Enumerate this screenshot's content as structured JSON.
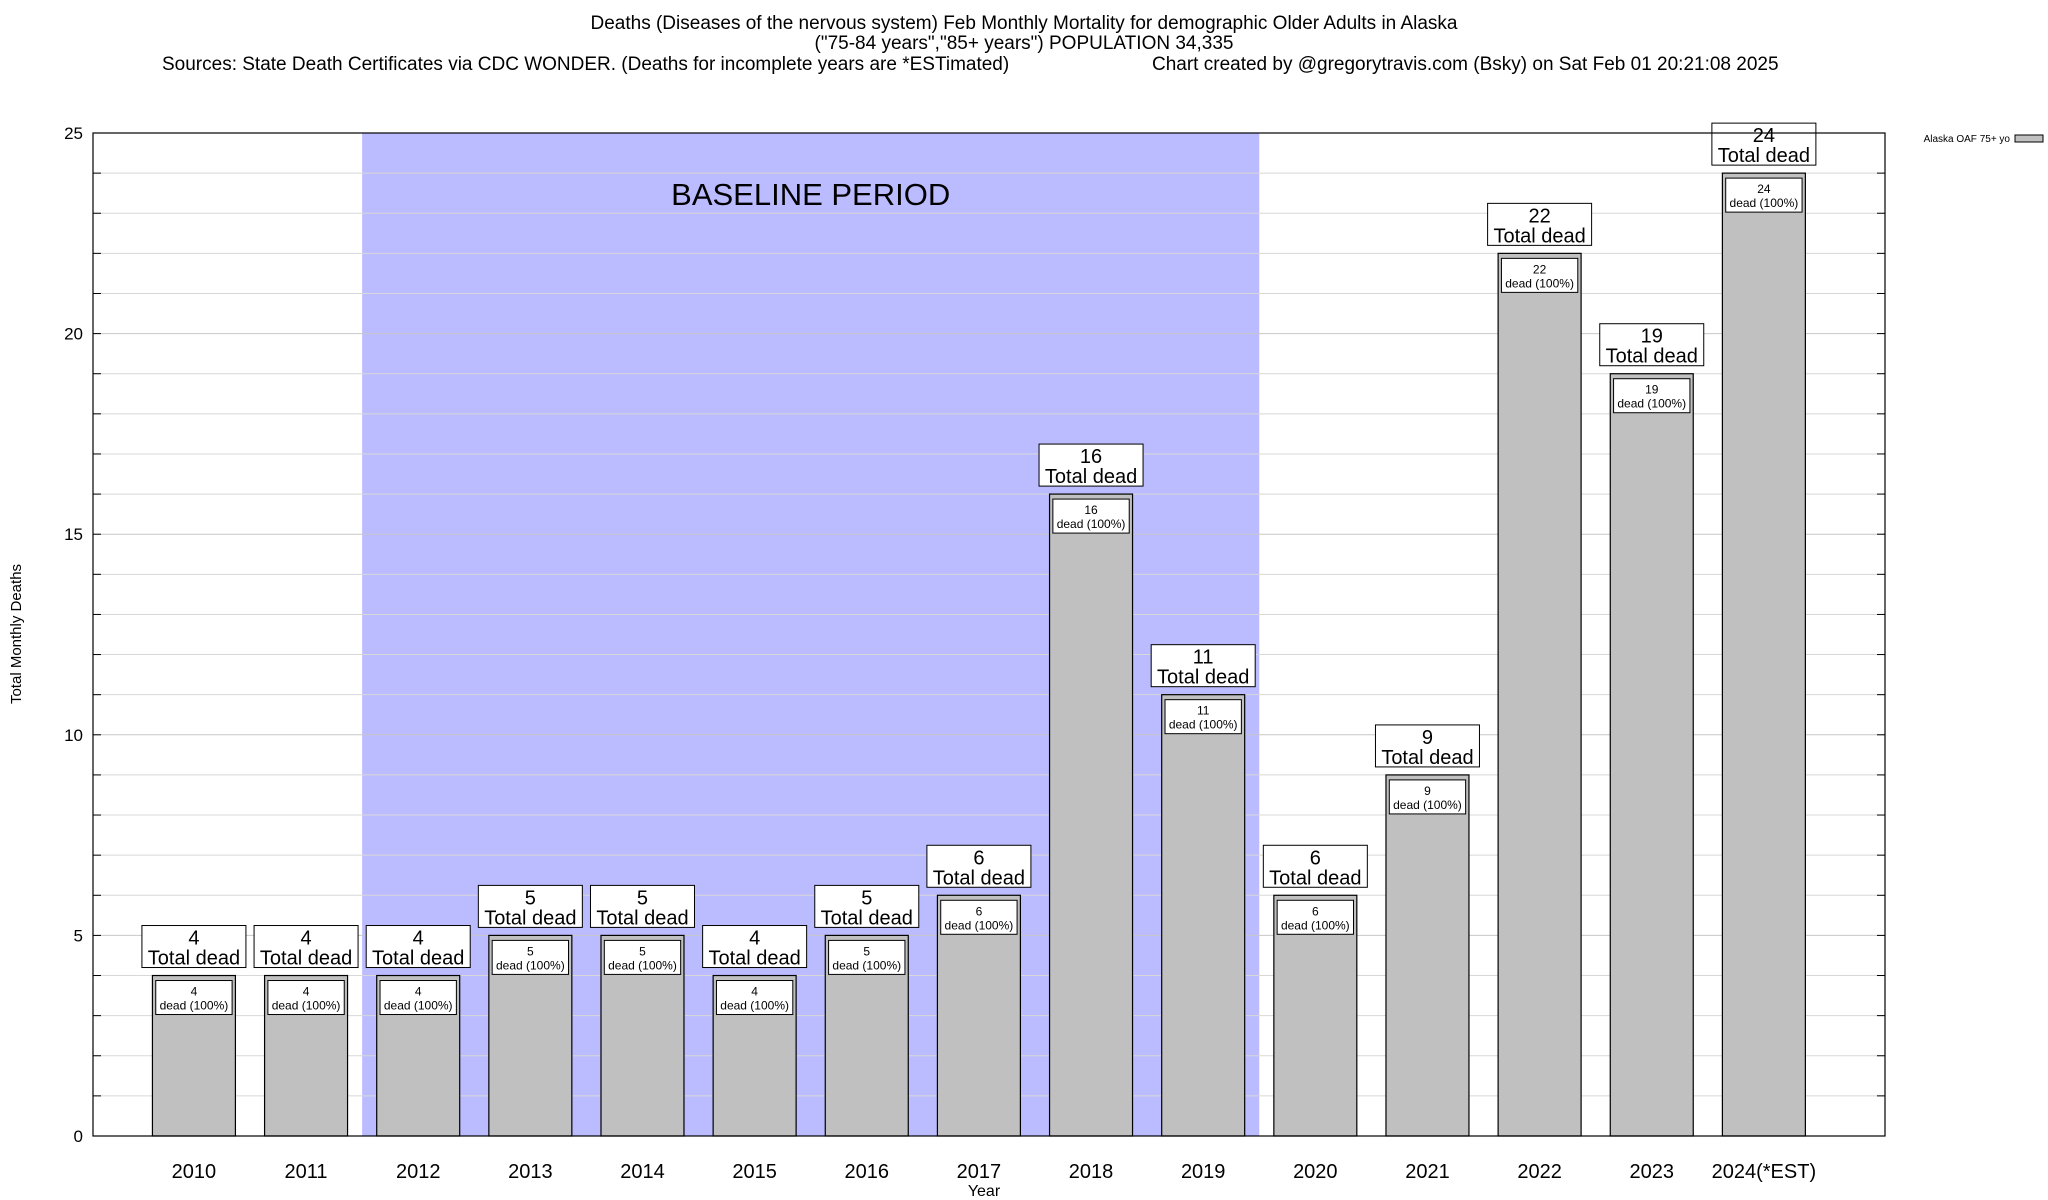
{
  "title": {
    "line1": "Deaths (Diseases of the nervous system) Feb Monthly Mortality for demographic Older Adults in Alaska",
    "line2": "(\"75-84 years\",\"85+ years\") POPULATION 34,335",
    "sources": "Sources: State Death Certificates via CDC WONDER. (Deaths for incomplete years are *ESTimated)",
    "credit": "Chart created by @gregorytravis.com (Bsky) on Sat Feb 01 20:21:08 2025"
  },
  "chart_data": {
    "type": "bar",
    "xlabel": "Year",
    "ylabel": "Total Monthly Deaths",
    "ylim": [
      0,
      25
    ],
    "yticks": [
      0,
      5,
      10,
      15,
      20,
      25
    ],
    "grid": true,
    "legend_position": "top-right",
    "categories": [
      "2010",
      "2011",
      "2012",
      "2013",
      "2014",
      "2015",
      "2016",
      "2017",
      "2018",
      "2019",
      "2020",
      "2021",
      "2022",
      "2023",
      "2024(*EST)"
    ],
    "series": [
      {
        "name": "Alaska OAF 75+ yo",
        "values": [
          4,
          4,
          4,
          5,
          5,
          4,
          5,
          6,
          16,
          11,
          6,
          9,
          22,
          19,
          24
        ],
        "color": "#c0c0c0"
      }
    ],
    "inner_labels": [
      "4\ndead (100%)",
      "4\ndead (100%)",
      "4\ndead (100%)",
      "5\ndead (100%)",
      "5\ndead (100%)",
      "4\ndead (100%)",
      "5\ndead (100%)",
      "6\ndead (100%)",
      "16\ndead (100%)",
      "11\ndead (100%)",
      "6\ndead (100%)",
      "9\ndead (100%)",
      "22\ndead (100%)",
      "19\ndead (100%)",
      "24\ndead (100%)"
    ],
    "total_labels": [
      "4\nTotal dead",
      "4\nTotal dead",
      "4\nTotal dead",
      "5\nTotal dead",
      "5\nTotal dead",
      "4\nTotal dead",
      "5\nTotal dead",
      "6\nTotal dead",
      "16\nTotal dead",
      "11\nTotal dead",
      "6\nTotal dead",
      "9\nTotal dead",
      "22\nTotal dead",
      "19\nTotal dead",
      "24\nTotal dead"
    ],
    "baseline": {
      "label": "BASELINE PERIOD",
      "from": "2012",
      "to": "2019",
      "color": "#bbbbff"
    }
  }
}
